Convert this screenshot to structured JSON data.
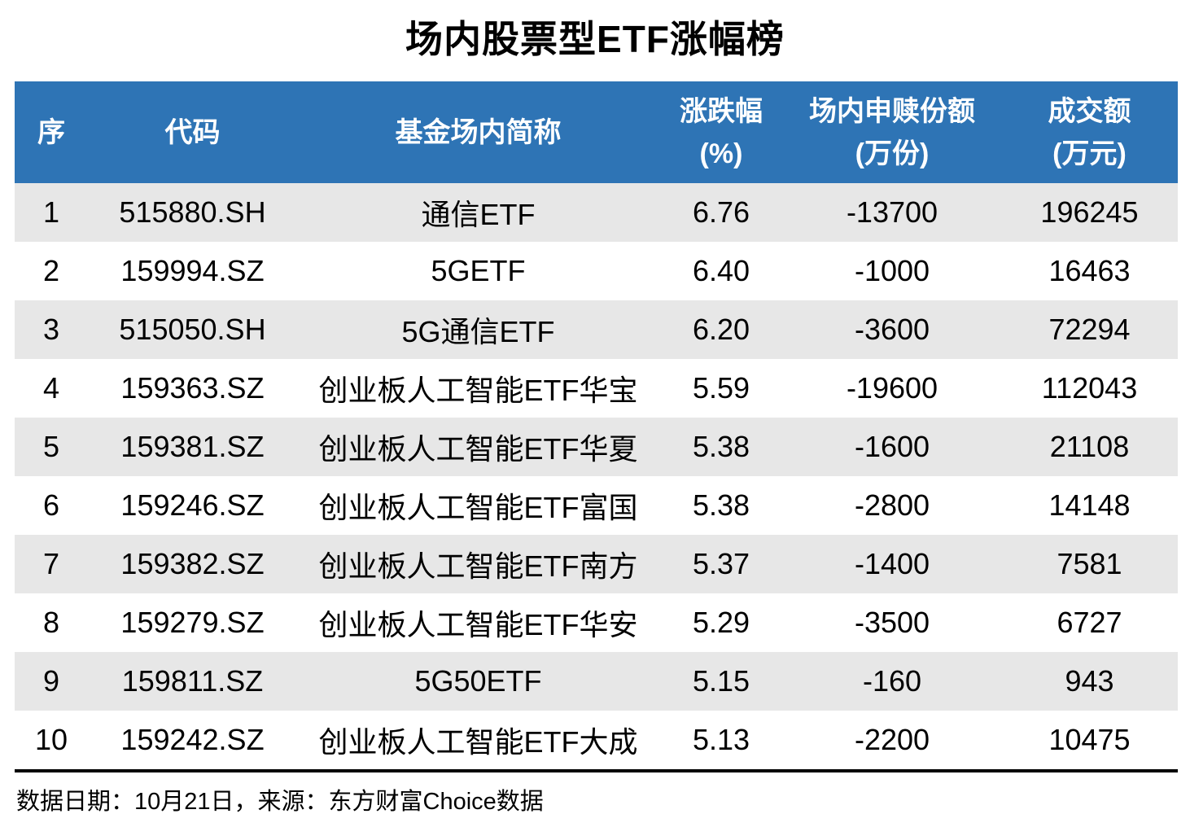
{
  "title": "场内股票型ETF涨幅榜",
  "colors": {
    "header_bg": "#2E74B5",
    "header_text": "#FFFFFF",
    "row_alt_bg": "#E7E7E7",
    "row_bg": "#FFFFFF",
    "text": "#000000"
  },
  "table": {
    "headers": [
      {
        "line1": "序",
        "line2": ""
      },
      {
        "line1": "代码",
        "line2": ""
      },
      {
        "line1": "基金场内简称",
        "line2": ""
      },
      {
        "line1": "涨跌幅",
        "line2": "(%)"
      },
      {
        "line1": "场内申赎份额",
        "line2": "(万份)"
      },
      {
        "line1": "成交额",
        "line2": "(万元)"
      }
    ],
    "rows": [
      {
        "seq": "1",
        "code": "515880.SH",
        "name": "通信ETF",
        "change": "6.76",
        "shares": "-13700",
        "turnover": "196245"
      },
      {
        "seq": "2",
        "code": "159994.SZ",
        "name": "5GETF",
        "change": "6.40",
        "shares": "-1000",
        "turnover": "16463"
      },
      {
        "seq": "3",
        "code": "515050.SH",
        "name": "5G通信ETF",
        "change": "6.20",
        "shares": "-3600",
        "turnover": "72294"
      },
      {
        "seq": "4",
        "code": "159363.SZ",
        "name": "创业板人工智能ETF华宝",
        "change": "5.59",
        "shares": "-19600",
        "turnover": "112043"
      },
      {
        "seq": "5",
        "code": "159381.SZ",
        "name": "创业板人工智能ETF华夏",
        "change": "5.38",
        "shares": "-1600",
        "turnover": "21108"
      },
      {
        "seq": "6",
        "code": "159246.SZ",
        "name": "创业板人工智能ETF富国",
        "change": "5.38",
        "shares": "-2800",
        "turnover": "14148"
      },
      {
        "seq": "7",
        "code": "159382.SZ",
        "name": "创业板人工智能ETF南方",
        "change": "5.37",
        "shares": "-1400",
        "turnover": "7581"
      },
      {
        "seq": "8",
        "code": "159279.SZ",
        "name": "创业板人工智能ETF华安",
        "change": "5.29",
        "shares": "-3500",
        "turnover": "6727"
      },
      {
        "seq": "9",
        "code": "159811.SZ",
        "name": "5G50ETF",
        "change": "5.15",
        "shares": "-160",
        "turnover": "943"
      },
      {
        "seq": "10",
        "code": "159242.SZ",
        "name": "创业板人工智能ETF大成",
        "change": "5.13",
        "shares": "-2200",
        "turnover": "10475"
      }
    ]
  },
  "footer": {
    "text": "数据日期：10月21日，来源：东方财富Choice数据"
  },
  "chart_data": {
    "type": "table",
    "title": "场内股票型ETF涨幅榜",
    "columns": [
      "序",
      "代码",
      "基金场内简称",
      "涨跌幅(%)",
      "场内申赎份额(万份)",
      "成交额(万元)"
    ],
    "rows": [
      [
        1,
        "515880.SH",
        "通信ETF",
        6.76,
        -13700,
        196245
      ],
      [
        2,
        "159994.SZ",
        "5GETF",
        6.4,
        -1000,
        16463
      ],
      [
        3,
        "515050.SH",
        "5G通信ETF",
        6.2,
        -3600,
        72294
      ],
      [
        4,
        "159363.SZ",
        "创业板人工智能ETF华宝",
        5.59,
        -19600,
        112043
      ],
      [
        5,
        "159381.SZ",
        "创业板人工智能ETF华夏",
        5.38,
        -1600,
        21108
      ],
      [
        6,
        "159246.SZ",
        "创业板人工智能ETF富国",
        5.38,
        -2800,
        14148
      ],
      [
        7,
        "159382.SZ",
        "创业板人工智能ETF南方",
        5.37,
        -1400,
        7581
      ],
      [
        8,
        "159279.SZ",
        "创业板人工智能ETF华安",
        5.29,
        -3500,
        6727
      ],
      [
        9,
        "159811.SZ",
        "5G50ETF",
        5.15,
        -160,
        943
      ],
      [
        10,
        "159242.SZ",
        "创业板人工智能ETF大成",
        5.13,
        -2200,
        10475
      ]
    ],
    "source_note": "数据日期：10月21日，来源：东方财富Choice数据",
    "layout": {
      "header_bg": "#2E74B5",
      "zebra_stripes": true,
      "first_row_striped": true
    }
  }
}
